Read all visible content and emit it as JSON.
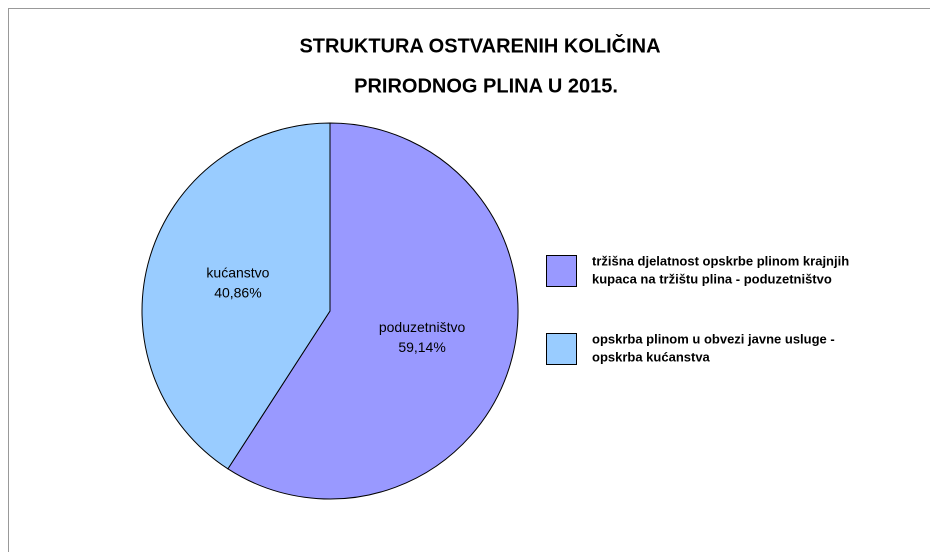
{
  "chart_data": {
    "type": "pie",
    "title": [
      "STRUKTURA OSTVARENIH KOLIČINA",
      "PRIRODNOG PLINA U 2015."
    ],
    "categories": [
      "poduzetništvo",
      "kućanstvo"
    ],
    "values": [
      59.14,
      40.86
    ],
    "value_labels": [
      "59,14%",
      "40,86%"
    ],
    "colors": [
      "#9999ff",
      "#99ccff"
    ],
    "legend": [
      [
        "tržišna djelatnost opskrbe plinom krajnjih",
        "kupaca na tržištu plina - poduzetništvo"
      ],
      [
        "opskrba plinom u obvezi javne usluge -",
        "opskrba kućanstva"
      ]
    ],
    "legend_position": "right"
  }
}
